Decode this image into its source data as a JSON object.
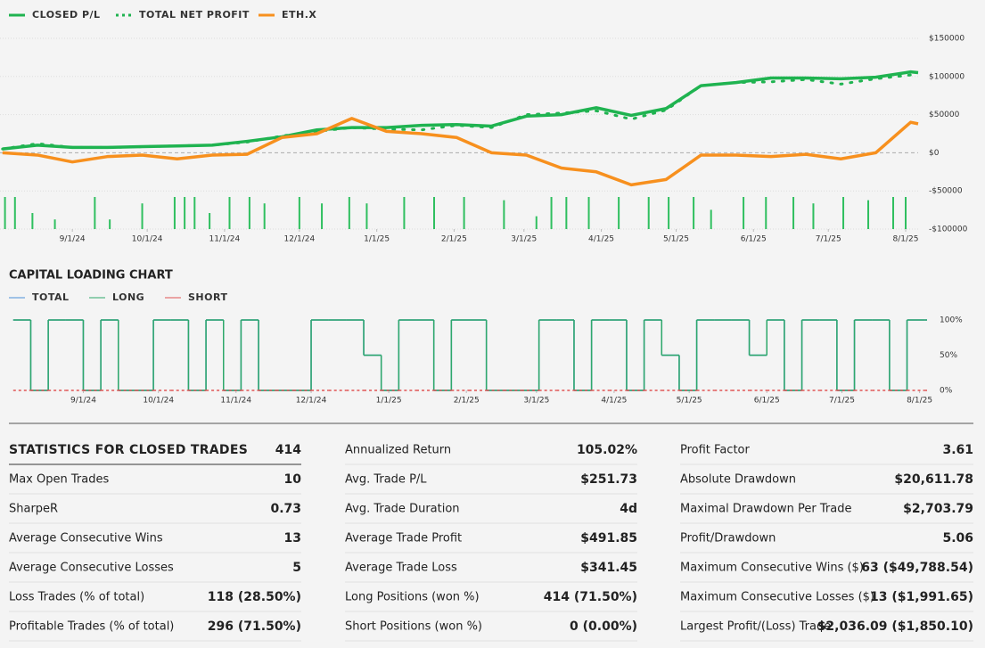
{
  "chart_data": [
    {
      "type": "line",
      "x": [
        "8/4/24",
        "8/18/24",
        "9/1/24",
        "9/15/24",
        "9/29/24",
        "10/13/24",
        "10/27/24",
        "11/10/24",
        "11/24/24",
        "12/8/24",
        "12/22/24",
        "1/5/25",
        "1/19/25",
        "2/2/25",
        "2/16/25",
        "3/2/25",
        "3/16/25",
        "3/30/25",
        "4/13/25",
        "4/27/25",
        "5/11/25",
        "5/25/25",
        "6/8/25",
        "6/22/25",
        "7/6/25",
        "7/20/25",
        "8/3/25",
        "8/6/25"
      ],
      "series": [
        {
          "name": "CLOSED P/L",
          "color": "#1fb350",
          "style": "solid",
          "values": [
            5000,
            10000,
            7000,
            7000,
            8000,
            9000,
            10000,
            15000,
            21000,
            30000,
            33000,
            33000,
            36000,
            37000,
            35000,
            48000,
            50000,
            59000,
            49000,
            58000,
            88000,
            92000,
            98000,
            98000,
            97000,
            99000,
            106000,
            105000
          ]
        },
        {
          "name": "TOTAL NET PROFIT",
          "color": "#1fb350",
          "style": "dotted",
          "values": [
            5000,
            12000,
            7000,
            7000,
            8000,
            9000,
            10000,
            14000,
            22000,
            28000,
            33000,
            31000,
            30000,
            36000,
            33000,
            50000,
            52000,
            55000,
            44000,
            56000,
            88000,
            92000,
            93000,
            96000,
            90000,
            97000,
            102000,
            100000
          ]
        },
        {
          "name": "ETH.X",
          "color": "#f7901e",
          "style": "solid",
          "values": [
            0,
            -3000,
            -12000,
            -5000,
            -3000,
            -8000,
            -3000,
            -2000,
            20000,
            25000,
            45000,
            28000,
            25000,
            20000,
            0,
            -3000,
            -20000,
            -25000,
            -42000,
            -35000,
            -3000,
            -3000,
            -5000,
            -2000,
            -8000,
            0,
            40000,
            38000
          ]
        }
      ],
      "bars": {
        "color": "#2fbf5f",
        "x": [
          "8/5/24",
          "8/9/24",
          "8/16/24",
          "8/25/24",
          "9/10/24",
          "9/16/24",
          "9/29/24",
          "10/12/24",
          "10/16/24",
          "10/20/24",
          "10/26/24",
          "11/3/24",
          "11/11/24",
          "11/17/24",
          "12/1/24",
          "12/10/24",
          "12/21/24",
          "12/28/24",
          "1/12/25",
          "1/24/25",
          "2/5/25",
          "2/21/25",
          "3/6/25",
          "3/12/25",
          "3/18/25",
          "3/27/25",
          "4/8/25",
          "4/20/25",
          "4/28/25",
          "5/8/25",
          "5/15/25",
          "5/28/25",
          "6/6/25",
          "6/17/25",
          "6/25/25",
          "7/7/25",
          "7/17/25",
          "7/27/25",
          "8/1/25"
        ],
        "values": [
          1,
          1,
          0.5,
          0.3,
          1,
          0.3,
          0.8,
          1,
          1,
          1,
          0.5,
          1,
          1,
          0.8,
          1,
          0.8,
          1,
          0.8,
          1,
          1,
          1,
          0.9,
          0.4,
          1,
          1,
          1,
          1,
          1,
          1,
          1,
          0.6,
          1,
          1,
          1,
          0.8,
          1,
          0.9,
          1,
          1
        ]
      },
      "xlim": [
        "8/3/24",
        "8/6/25"
      ],
      "xticks": [
        "9/1/24",
        "10/1/24",
        "11/1/24",
        "12/1/24",
        "1/1/25",
        "2/1/25",
        "3/1/25",
        "4/1/25",
        "5/1/25",
        "6/1/25",
        "7/1/25",
        "8/1/25"
      ],
      "ylim": [
        -100000,
        150000
      ],
      "yticks": [
        {
          "value": 150000,
          "label": "$150000"
        },
        {
          "value": 100000,
          "label": "$100000"
        },
        {
          "value": 50000,
          "label": "$50000"
        },
        {
          "value": 0,
          "label": "$0"
        },
        {
          "value": -50000,
          "label": "-$50000"
        },
        {
          "value": -100000,
          "label": "-$100000"
        }
      ],
      "grid": true
    },
    {
      "type": "step",
      "title": "CAPITAL LOADING CHART",
      "x": [
        "8/4/24",
        "8/11/24",
        "8/18/24",
        "8/25/24",
        "9/1/24",
        "9/8/24",
        "9/15/24",
        "9/22/24",
        "9/29/24",
        "10/6/24",
        "10/13/24",
        "10/20/24",
        "10/27/24",
        "11/3/24",
        "11/10/24",
        "11/17/24",
        "11/24/24",
        "12/1/24",
        "12/8/24",
        "12/15/24",
        "12/22/24",
        "12/29/24",
        "1/5/25",
        "1/12/25",
        "1/19/25",
        "1/26/25",
        "2/2/25",
        "2/9/25",
        "2/16/25",
        "2/23/25",
        "3/2/25",
        "3/9/25",
        "3/16/25",
        "3/23/25",
        "3/30/25",
        "4/6/25",
        "4/13/25",
        "4/20/25",
        "4/27/25",
        "5/4/25",
        "5/11/25",
        "5/18/25",
        "5/25/25",
        "6/1/25",
        "6/8/25",
        "6/15/25",
        "6/22/25",
        "6/29/25",
        "7/6/25",
        "7/13/25",
        "7/20/25",
        "7/27/25",
        "8/3/25"
      ],
      "series": [
        {
          "name": "TOTAL",
          "color": "#4a8fd8",
          "values": [
            100,
            0,
            100,
            100,
            0,
            100,
            0,
            0,
            100,
            100,
            0,
            100,
            0,
            100,
            0,
            0,
            0,
            100,
            100,
            100,
            50,
            0,
            100,
            100,
            0,
            100,
            100,
            0,
            0,
            0,
            100,
            100,
            0,
            100,
            100,
            0,
            100,
            50,
            0,
            100,
            100,
            100,
            50,
            100,
            0,
            100,
            100,
            0,
            100,
            100,
            0,
            100,
            100
          ]
        },
        {
          "name": "LONG",
          "color": "#2ea86a",
          "values": [
            100,
            0,
            100,
            100,
            0,
            100,
            0,
            0,
            100,
            100,
            0,
            100,
            0,
            100,
            0,
            0,
            0,
            100,
            100,
            100,
            50,
            0,
            100,
            100,
            0,
            100,
            100,
            0,
            0,
            0,
            100,
            100,
            0,
            100,
            100,
            0,
            100,
            50,
            0,
            100,
            100,
            100,
            50,
            100,
            0,
            100,
            100,
            0,
            100,
            100,
            0,
            100,
            100
          ]
        },
        {
          "name": "SHORT",
          "color": "#e05555",
          "values": [
            0,
            0,
            0,
            0,
            0,
            0,
            0,
            0,
            0,
            0,
            0,
            0,
            0,
            0,
            0,
            0,
            0,
            0,
            0,
            0,
            0,
            0,
            0,
            0,
            0,
            0,
            0,
            0,
            0,
            0,
            0,
            0,
            0,
            0,
            0,
            0,
            0,
            0,
            0,
            0,
            0,
            0,
            0,
            0,
            0,
            0,
            0,
            0,
            0,
            0,
            0,
            0,
            0
          ]
        }
      ],
      "xlim": [
        "8/3/24",
        "8/4/25"
      ],
      "xticks": [
        "9/1/24",
        "10/1/24",
        "11/1/24",
        "12/1/24",
        "1/1/25",
        "2/1/25",
        "3/1/25",
        "4/1/25",
        "5/1/25",
        "6/1/25",
        "7/1/25",
        "8/1/25"
      ],
      "ylim": [
        0,
        100
      ],
      "yticks": [
        {
          "value": 0,
          "label": "0%"
        },
        {
          "value": 50,
          "label": "50%"
        },
        {
          "value": 100,
          "label": "100%"
        }
      ],
      "grid": false
    }
  ],
  "statistics": {
    "columns": [
      {
        "header": {
          "label": "STATISTICS FOR CLOSED TRADES",
          "value": "414"
        },
        "rows": [
          {
            "label": "Max Open Trades",
            "value": "10"
          },
          {
            "label": "SharpeR",
            "value": "0.73"
          },
          {
            "label": "Average Consecutive Wins",
            "value": "13"
          },
          {
            "label": "Average Consecutive Losses",
            "value": "5"
          },
          {
            "label": "Loss Trades (% of total)",
            "value": "118 (28.50%)"
          },
          {
            "label": "Profitable Trades (% of total)",
            "value": "296 (71.50%)"
          }
        ]
      },
      {
        "rows": [
          {
            "label": "Annualized Return",
            "value": "105.02%"
          },
          {
            "label": "Avg. Trade P/L",
            "value": "$251.73"
          },
          {
            "label": "Avg. Trade Duration",
            "value": "4d"
          },
          {
            "label": "Average Trade Profit",
            "value": "$491.85"
          },
          {
            "label": "Average Trade Loss",
            "value": "$341.45"
          },
          {
            "label": "Long Positions (won %)",
            "value": "414 (71.50%)"
          },
          {
            "label": "Short Positions (won %)",
            "value": "0 (0.00%)"
          }
        ]
      },
      {
        "rows": [
          {
            "label": "Profit Factor",
            "value": "3.61"
          },
          {
            "label": "Absolute Drawdown",
            "value": "$20,611.78"
          },
          {
            "label": "Maximal Drawdown Per Trade",
            "value": "$2,703.79"
          },
          {
            "label": "Profit/Drawdown",
            "value": "5.06"
          },
          {
            "label": "Maximum Consecutive Wins ($)",
            "value": "63 ($49,788.54)"
          },
          {
            "label": "Maximum Consecutive Losses ($)",
            "value": "13 ($1,991.65)"
          },
          {
            "label": "Largest Profit/(Loss) Trade",
            "value": "$2,036.09 ($1,850.10)"
          }
        ]
      }
    ]
  }
}
